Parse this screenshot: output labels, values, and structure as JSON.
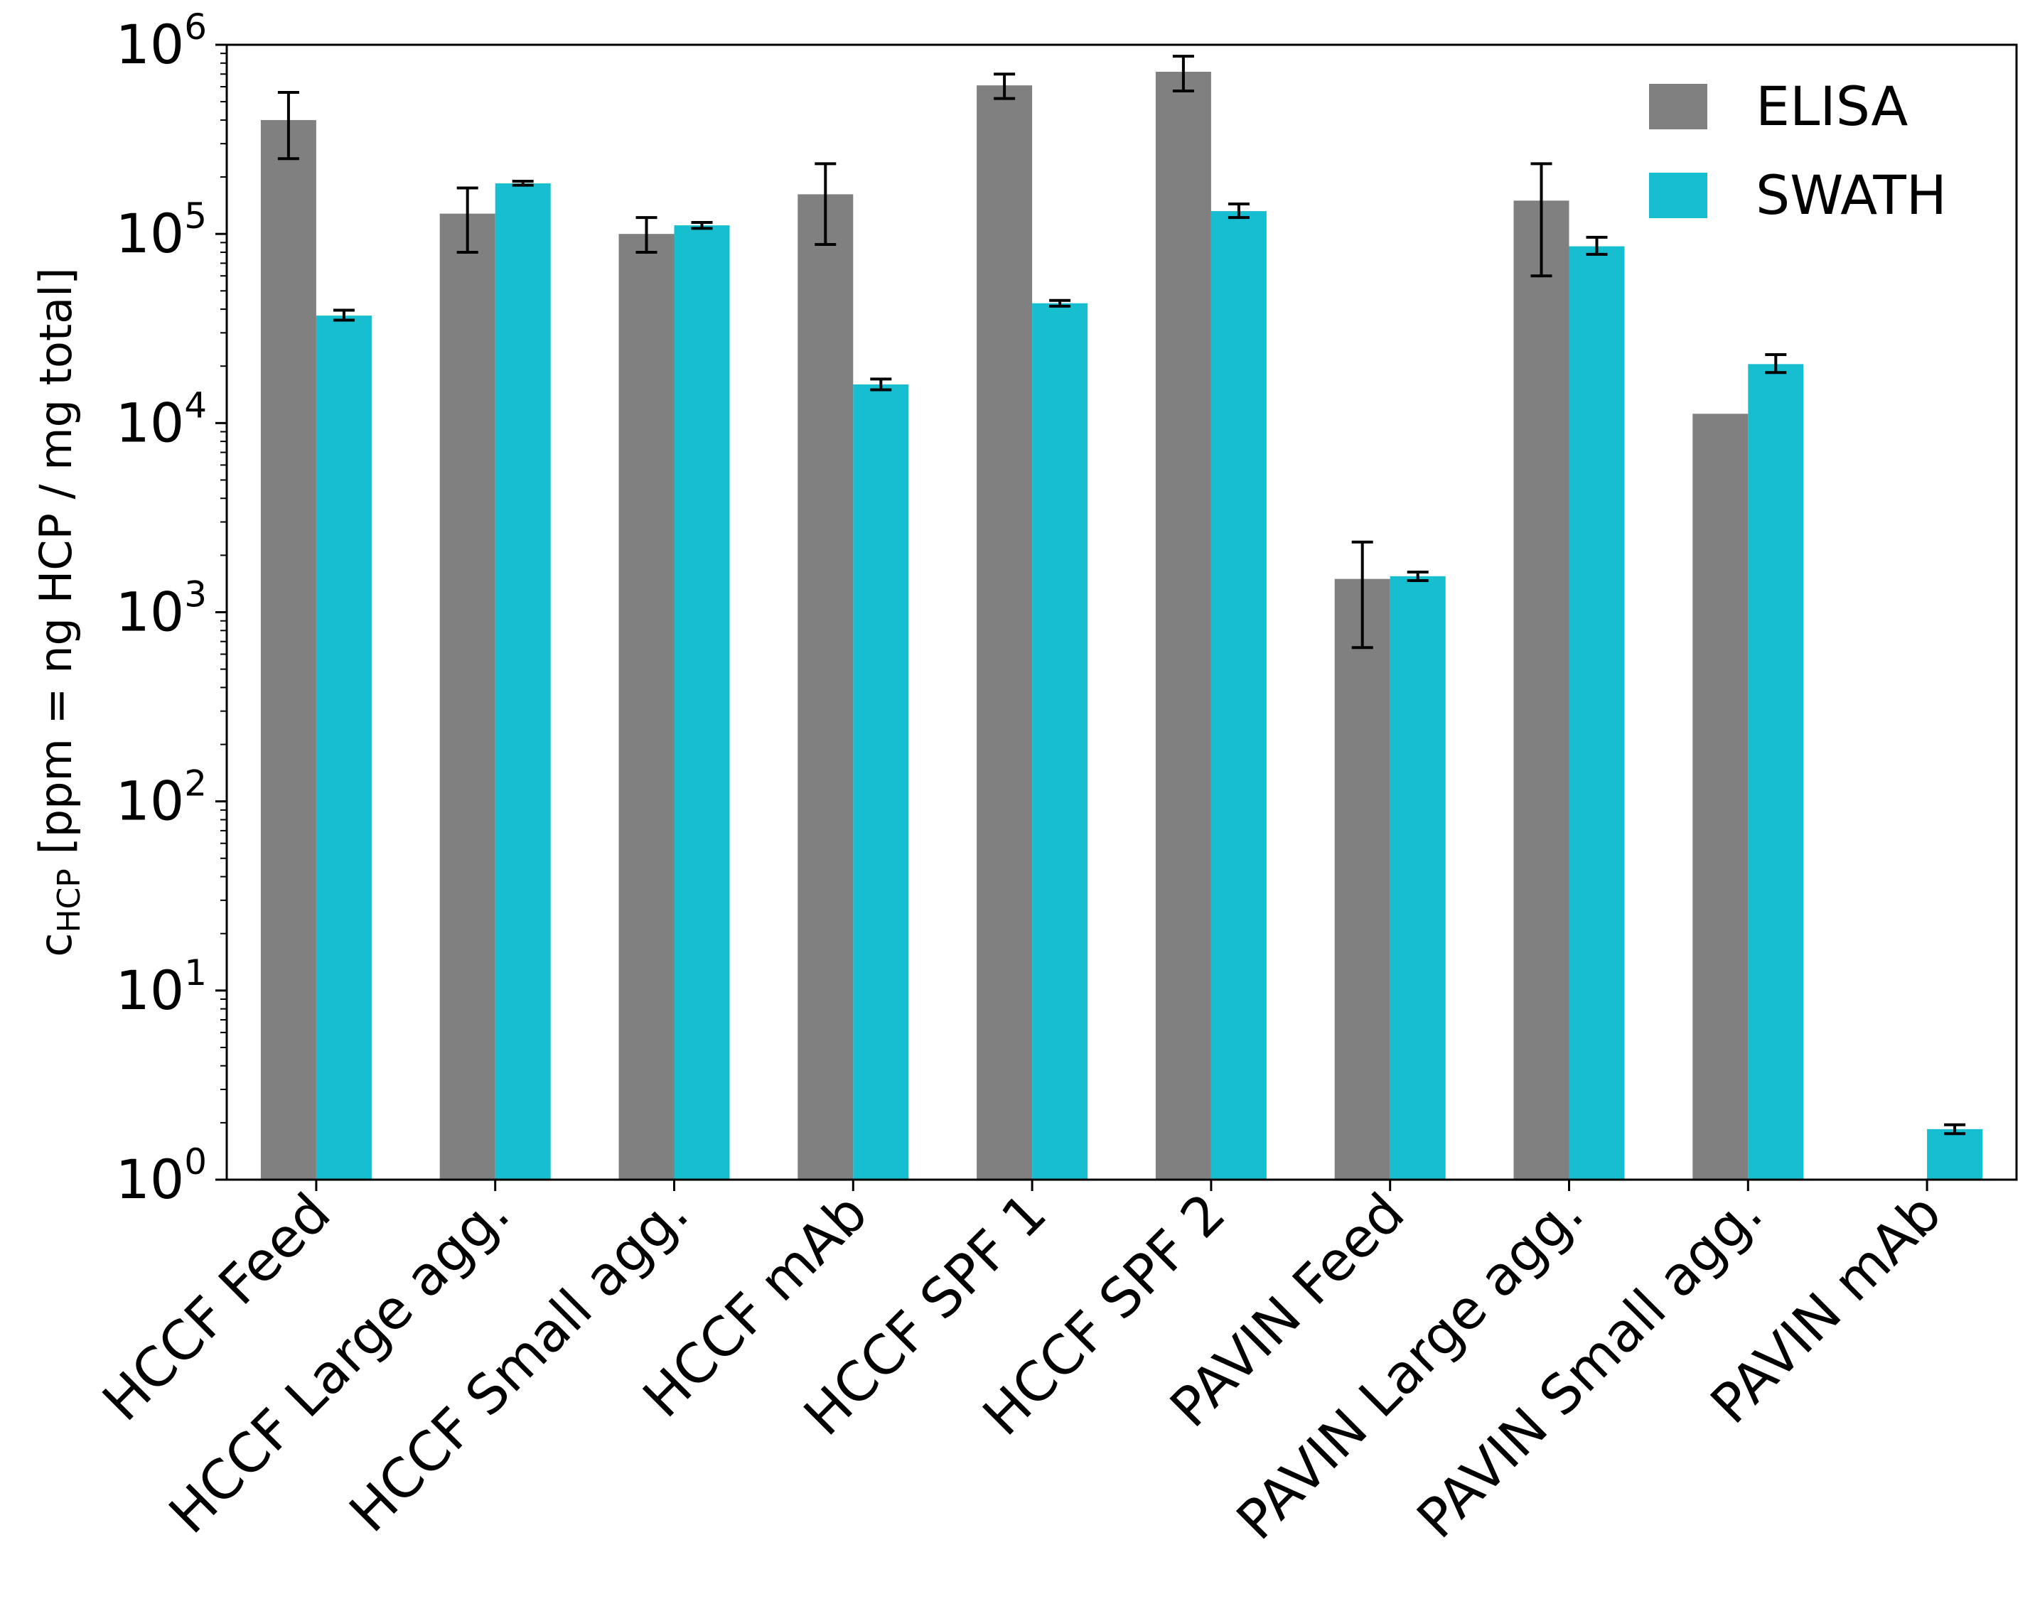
{
  "chart_data": {
    "type": "bar",
    "yscale": "log",
    "ylim": [
      1,
      1000000
    ],
    "ylabel": {
      "main": "c",
      "sub": "HCP",
      "rest": " [ppm = ng HCP / mg total]"
    },
    "yticks": [
      {
        "value": 1,
        "base": "10",
        "exp": "0"
      },
      {
        "value": 10,
        "base": "10",
        "exp": "1"
      },
      {
        "value": 100,
        "base": "10",
        "exp": "2"
      },
      {
        "value": 1000,
        "base": "10",
        "exp": "3"
      },
      {
        "value": 10000,
        "base": "10",
        "exp": "4"
      },
      {
        "value": 100000,
        "base": "10",
        "exp": "5"
      },
      {
        "value": 1000000,
        "base": "10",
        "exp": "6"
      }
    ],
    "categories": [
      "HCCF Feed",
      "HCCF Large agg.",
      "HCCF Small agg.",
      "HCCF mAb",
      "HCCF SPF 1",
      "HCCF SPF 2",
      "PAVIN Feed",
      "PAVIN Large agg.",
      "PAVIN Small agg.",
      "PAVIN mAb"
    ],
    "series": [
      {
        "name": "ELISA",
        "color": "#808080",
        "values": [
          400000,
          128000,
          100000,
          162000,
          610000,
          720000,
          1500,
          150000,
          11200,
          null
        ],
        "err_low": [
          250000,
          80000,
          80000,
          88000,
          520000,
          570000,
          650,
          60000,
          null,
          null
        ],
        "err_high": [
          560000,
          175000,
          122000,
          235000,
          700000,
          870000,
          2350,
          235000,
          null,
          null
        ]
      },
      {
        "name": "SWATH",
        "color": "#17becf",
        "values": [
          37000,
          185000,
          111000,
          16000,
          43000,
          132000,
          1550,
          86000,
          20500,
          1.85
        ],
        "err_low": [
          35000,
          181000,
          107000,
          15000,
          41500,
          122000,
          1470,
          78000,
          18500,
          1.75
        ],
        "err_high": [
          39500,
          190000,
          115000,
          17100,
          44500,
          144000,
          1630,
          96000,
          23000,
          1.95
        ]
      }
    ],
    "legend_position": "top-right",
    "grid": false
  }
}
